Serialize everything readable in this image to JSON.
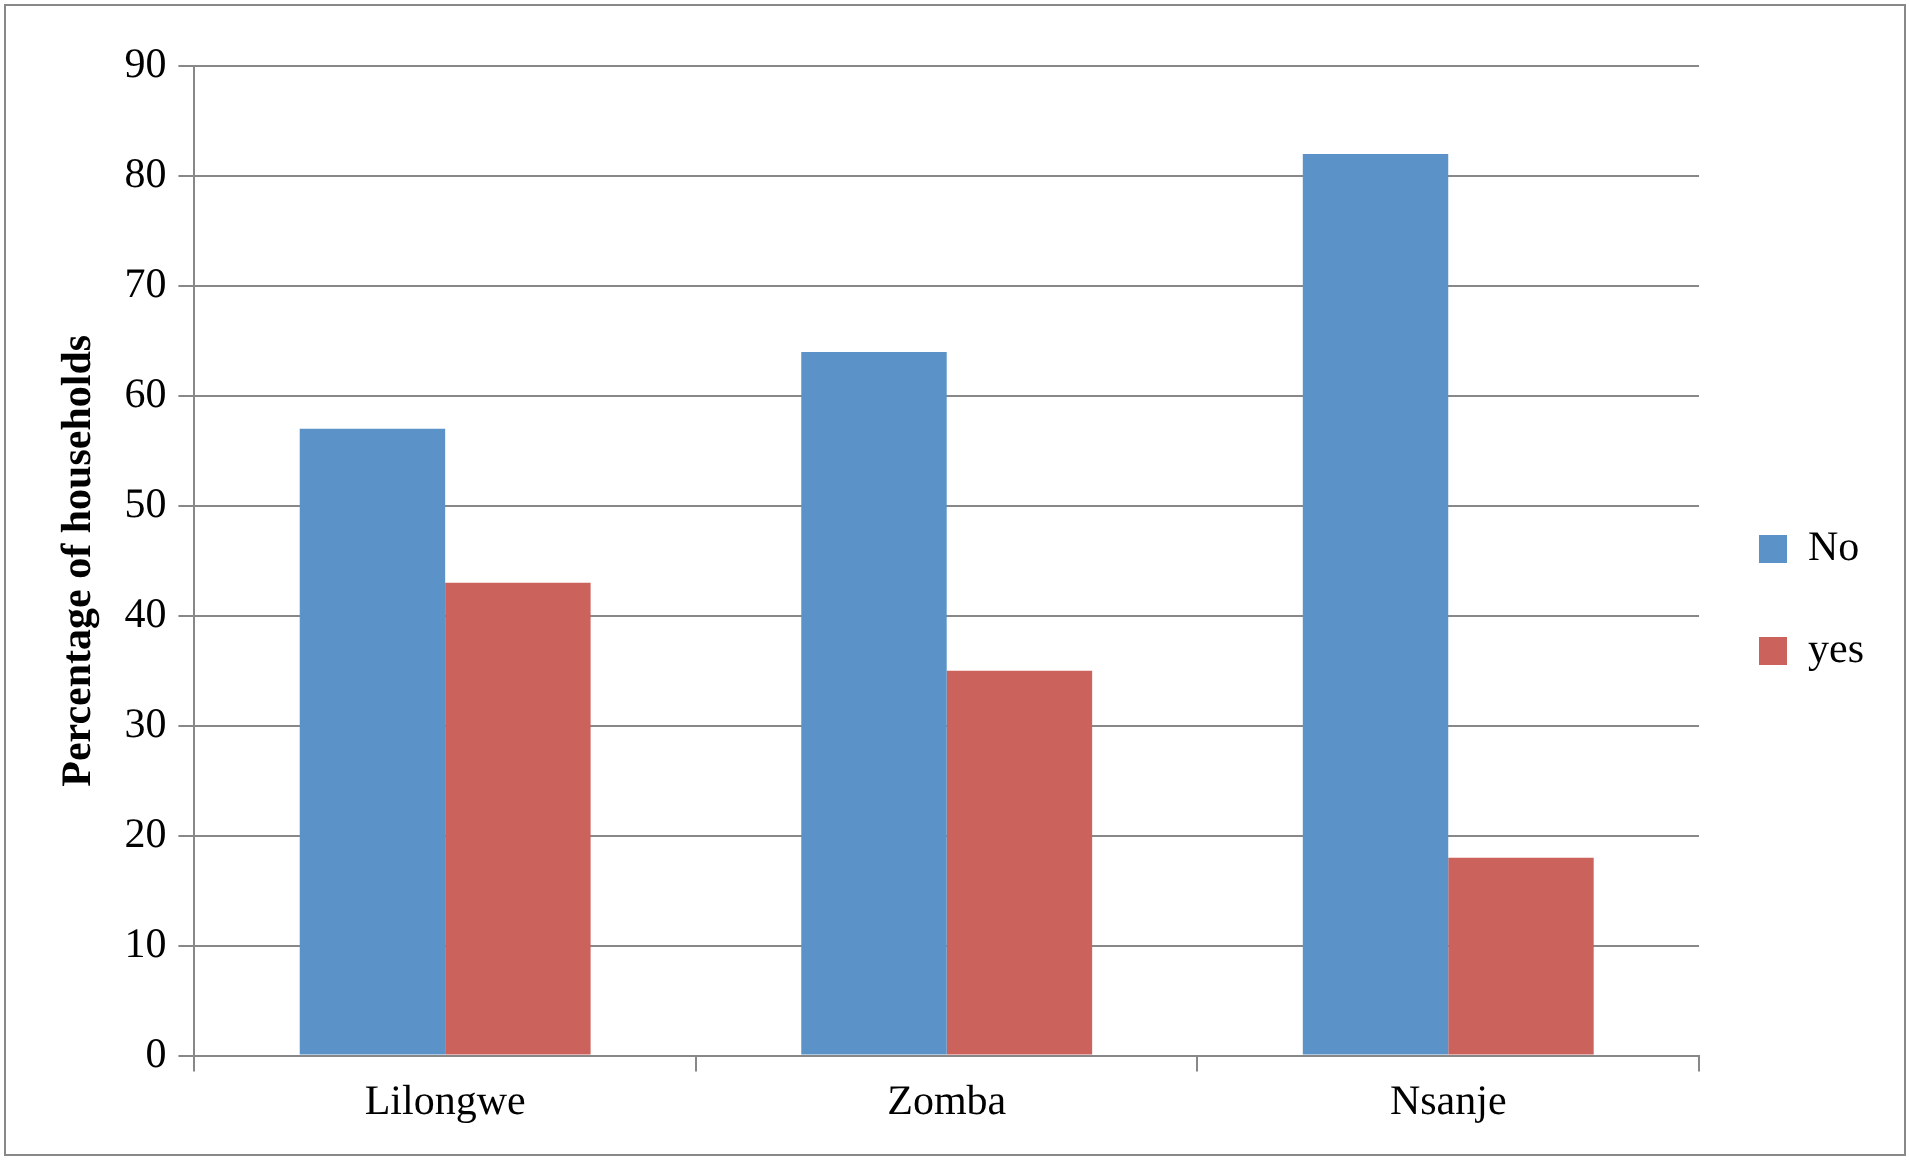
{
  "chart_data": {
    "type": "bar",
    "ylabel": "Percentage of households",
    "categories": [
      "Lilongwe",
      "Zomba",
      "Nsanje"
    ],
    "series": [
      {
        "name": "No",
        "color": "#5b93c8",
        "values": [
          57,
          64,
          82
        ]
      },
      {
        "name": "yes",
        "color": "#cc625c",
        "values": [
          43,
          35,
          18
        ]
      }
    ],
    "ylim": [
      0,
      90
    ],
    "yticks": [
      0,
      10,
      20,
      30,
      40,
      50,
      60,
      70,
      80,
      90
    ],
    "grid": "y",
    "legend": "right"
  }
}
